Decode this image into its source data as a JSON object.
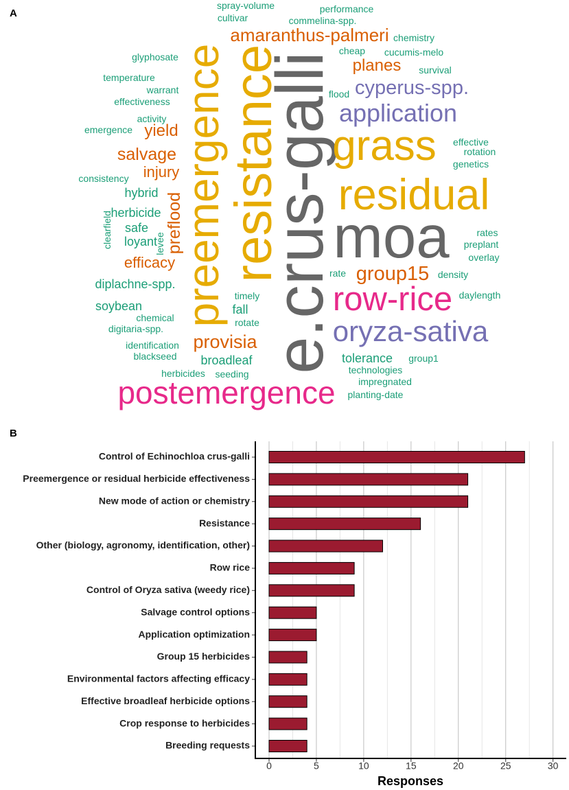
{
  "word_cloud": {
    "panel_label": "A",
    "words": [
      {
        "text": "e.crus-galli",
        "color": "#666666"
      },
      {
        "text": "resistance",
        "color": "#e6ab02"
      },
      {
        "text": "preemergence",
        "color": "#e6ab02"
      },
      {
        "text": "preflood",
        "color": "#d95f02"
      },
      {
        "text": "levee",
        "color": "#1b9e77"
      },
      {
        "text": "clearfield",
        "color": "#1b9e77"
      },
      {
        "text": "moa",
        "color": "#666666"
      },
      {
        "text": "residual",
        "color": "#e6ab02"
      },
      {
        "text": "grass",
        "color": "#e6ab02"
      },
      {
        "text": "application",
        "color": "#7570b3"
      },
      {
        "text": "cyperus-spp.",
        "color": "#7570b3"
      },
      {
        "text": "amaranthus-palmeri",
        "color": "#d95f02"
      },
      {
        "text": "planes",
        "color": "#d95f02"
      },
      {
        "text": "row-rice",
        "color": "#e7298a"
      },
      {
        "text": "oryza-sativa",
        "color": "#7570b3"
      },
      {
        "text": "group15",
        "color": "#d95f02"
      },
      {
        "text": "postemergence",
        "color": "#e7298a"
      },
      {
        "text": "provisia",
        "color": "#d95f02"
      },
      {
        "text": "broadleaf",
        "color": "#1b9e77"
      },
      {
        "text": "tolerance",
        "color": "#1b9e77"
      },
      {
        "text": "salvage",
        "color": "#d95f02"
      },
      {
        "text": "yield",
        "color": "#d95f02"
      },
      {
        "text": "injury",
        "color": "#d95f02"
      },
      {
        "text": "efficacy",
        "color": "#d95f02"
      },
      {
        "text": "spray-volume",
        "color": "#1b9e77"
      },
      {
        "text": "performance",
        "color": "#1b9e77"
      },
      {
        "text": "cultivar",
        "color": "#1b9e77"
      },
      {
        "text": "commelina-spp.",
        "color": "#1b9e77"
      },
      {
        "text": "chemistry",
        "color": "#1b9e77"
      },
      {
        "text": "glyphosate",
        "color": "#1b9e77"
      },
      {
        "text": "cheap",
        "color": "#1b9e77"
      },
      {
        "text": "cucumis-melo",
        "color": "#1b9e77"
      },
      {
        "text": "temperature",
        "color": "#1b9e77"
      },
      {
        "text": "survival",
        "color": "#1b9e77"
      },
      {
        "text": "warrant",
        "color": "#1b9e77"
      },
      {
        "text": "effectiveness",
        "color": "#1b9e77"
      },
      {
        "text": "flood",
        "color": "#1b9e77"
      },
      {
        "text": "activity",
        "color": "#1b9e77"
      },
      {
        "text": "emergence",
        "color": "#1b9e77"
      },
      {
        "text": "effective",
        "color": "#1b9e77"
      },
      {
        "text": "rotation",
        "color": "#1b9e77"
      },
      {
        "text": "genetics",
        "color": "#1b9e77"
      },
      {
        "text": "consistency",
        "color": "#1b9e77"
      },
      {
        "text": "hybrid",
        "color": "#1b9e77"
      },
      {
        "text": "herbicide",
        "color": "#1b9e77"
      },
      {
        "text": "safe",
        "color": "#1b9e77"
      },
      {
        "text": "loyant",
        "color": "#1b9e77"
      },
      {
        "text": "rates",
        "color": "#1b9e77"
      },
      {
        "text": "preplant",
        "color": "#1b9e77"
      },
      {
        "text": "overlay",
        "color": "#1b9e77"
      },
      {
        "text": "rate",
        "color": "#1b9e77"
      },
      {
        "text": "density",
        "color": "#1b9e77"
      },
      {
        "text": "diplachne-spp.",
        "color": "#1b9e77"
      },
      {
        "text": "timely",
        "color": "#1b9e77"
      },
      {
        "text": "daylength",
        "color": "#1b9e77"
      },
      {
        "text": "soybean",
        "color": "#1b9e77"
      },
      {
        "text": "fall",
        "color": "#1b9e77"
      },
      {
        "text": "chemical",
        "color": "#1b9e77"
      },
      {
        "text": "rotate",
        "color": "#1b9e77"
      },
      {
        "text": "digitaria-spp.",
        "color": "#1b9e77"
      },
      {
        "text": "identification",
        "color": "#1b9e77"
      },
      {
        "text": "blackseed",
        "color": "#1b9e77"
      },
      {
        "text": "group1",
        "color": "#1b9e77"
      },
      {
        "text": "technologies",
        "color": "#1b9e77"
      },
      {
        "text": "herbicides",
        "color": "#1b9e77"
      },
      {
        "text": "seeding",
        "color": "#1b9e77"
      },
      {
        "text": "impregnated",
        "color": "#1b9e77"
      },
      {
        "text": "planting-date",
        "color": "#1b9e77"
      }
    ]
  },
  "chart_data": {
    "type": "bar",
    "orientation": "horizontal",
    "panel_label": "B",
    "categories": [
      "Control of Echinochloa crus-galli",
      "Preemergence or residual herbicide effectiveness",
      "New mode of action or chemistry",
      "Resistance",
      "Other (biology, agronomy, identification, other)",
      "Row rice",
      "Control of Oryza sativa (weedy rice)",
      "Salvage control options",
      "Application optimization",
      "Group 15 herbicides",
      "Environmental factors affecting efficacy",
      "Effective broadleaf herbicide options",
      "Crop response to herbicides",
      "Breeding requests"
    ],
    "values": [
      27,
      21,
      21,
      16,
      12,
      9,
      9,
      5,
      5,
      4,
      4,
      4,
      4,
      4
    ],
    "color": "#9b1b30",
    "x_label": "Responses",
    "xlim": [
      -1.45,
      31.4
    ],
    "xticks": [
      0,
      5,
      10,
      15,
      20,
      25,
      30
    ],
    "x_minor_ticks": [
      2.5,
      7.5,
      12.5,
      17.5,
      22.5,
      27.5
    ],
    "grid": true
  }
}
